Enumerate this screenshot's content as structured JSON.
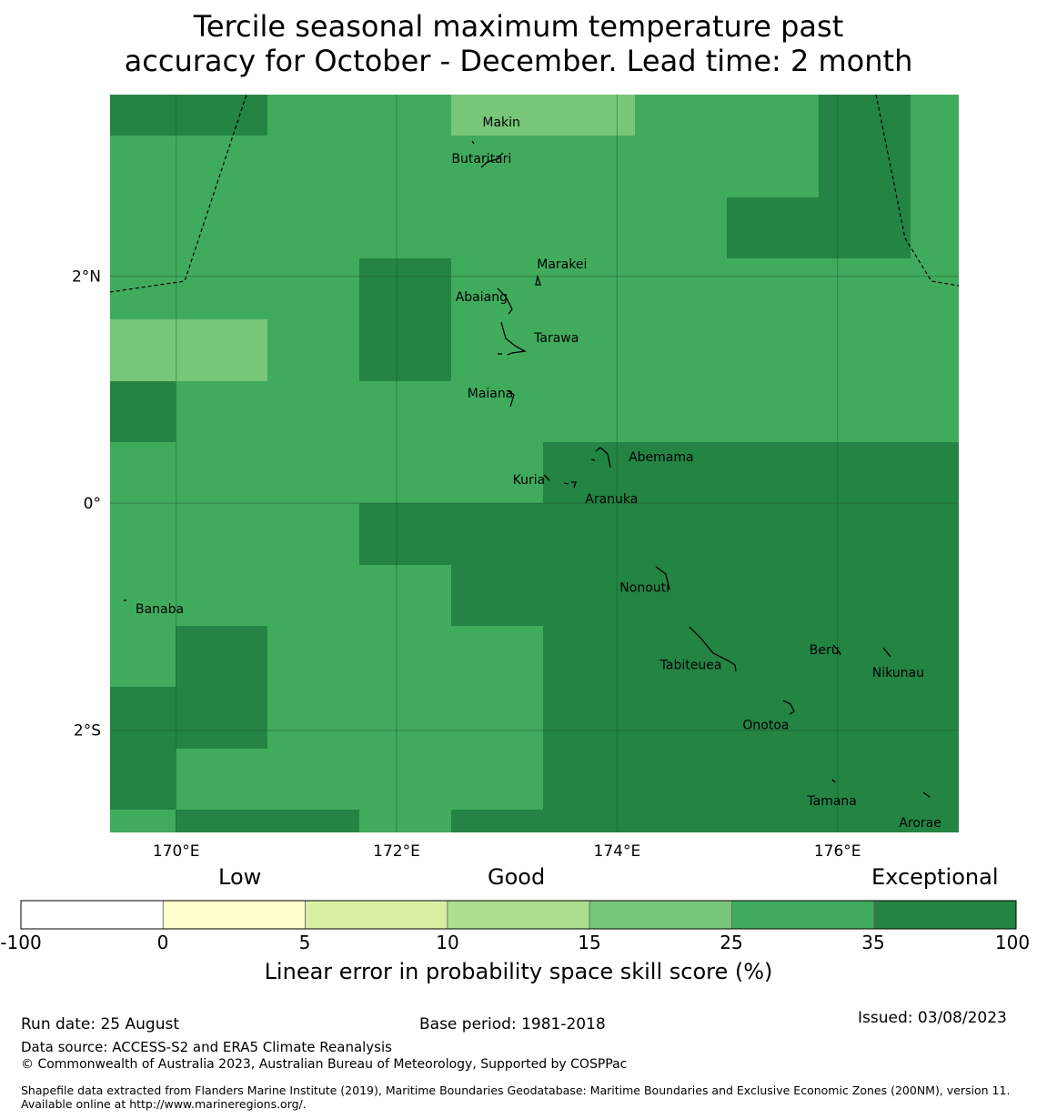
{
  "title_line1": "Tercile seasonal maximum temperature past",
  "title_line2": "accuracy for October - December. Lead time: 2 month",
  "map": {
    "lon_range": [
      169.4,
      177.1
    ],
    "lat_range": [
      -2.9,
      3.6
    ],
    "lon_ticks": [
      {
        "value": 170,
        "label": "170°E"
      },
      {
        "value": 172,
        "label": "172°E"
      },
      {
        "value": 174,
        "label": "174°E"
      },
      {
        "value": 176,
        "label": "176°E"
      }
    ],
    "lat_ticks": [
      {
        "value": 2,
        "label": "2°N"
      },
      {
        "value": 0,
        "label": "0°"
      },
      {
        "value": -2,
        "label": "2°S"
      }
    ],
    "colors": {
      "exceptional": "#238443",
      "good_high": "#41ab5d",
      "good_low": "#78c679"
    },
    "places": [
      {
        "name": "Makin",
        "lon": 172.95,
        "lat": 3.32
      },
      {
        "name": "Butaritari",
        "lon": 172.77,
        "lat": 3.0
      },
      {
        "name": "Marakei",
        "lon": 173.5,
        "lat": 2.07
      },
      {
        "name": "Abaiang",
        "lon": 172.77,
        "lat": 1.78
      },
      {
        "name": "Tarawa",
        "lon": 173.45,
        "lat": 1.42
      },
      {
        "name": "Maiana",
        "lon": 172.85,
        "lat": 0.93
      },
      {
        "name": "Abemama",
        "lon": 174.4,
        "lat": 0.37
      },
      {
        "name": "Kuria",
        "lon": 173.2,
        "lat": 0.17
      },
      {
        "name": "Aranuka",
        "lon": 173.95,
        "lat": -0.0
      },
      {
        "name": "Banaba",
        "lon": 169.85,
        "lat": -0.97
      },
      {
        "name": "Nonouti",
        "lon": 174.25,
        "lat": -0.78
      },
      {
        "name": "Beru",
        "lon": 175.88,
        "lat": -1.33
      },
      {
        "name": "Tabiteuea",
        "lon": 174.67,
        "lat": -1.46
      },
      {
        "name": "Nikunau",
        "lon": 176.55,
        "lat": -1.53
      },
      {
        "name": "Onotoa",
        "lon": 175.35,
        "lat": -1.99
      },
      {
        "name": "Tamana",
        "lon": 175.95,
        "lat": -2.66
      },
      {
        "name": "Arorae",
        "lon": 176.75,
        "lat": -2.85
      }
    ]
  },
  "colorbar": {
    "categories": [
      "Low",
      "Good",
      "Exceptional"
    ],
    "boundaries": [
      "-100",
      "0",
      "5",
      "10",
      "15",
      "25",
      "35",
      "100"
    ],
    "colors": [
      "#ffffff",
      "#ffffcc",
      "#d9f0a3",
      "#addd8e",
      "#78c679",
      "#41ab5d",
      "#238443"
    ],
    "label": "Linear error in probability space skill score (%)"
  },
  "footer": {
    "run_date": "Run date: 25 August",
    "base_period": "Base period: 1981-2018",
    "issued": "Issued: 03/08/2023",
    "data_source": "Data source: ACCESS-S2 and ERA5 Climate Reanalysis",
    "copyright": "© Commonwealth of Australia 2023, Australian Bureau of Meteorology, Supported by COSPPac",
    "shapefile": "Shapefile data extracted from Flanders Marine Institute (2019), Maritime Boundaries Geodatabase: Maritime Boundaries and Exclusive Economic Zones (200NM), version 11. Available online at http://www.marineregions.org/."
  }
}
